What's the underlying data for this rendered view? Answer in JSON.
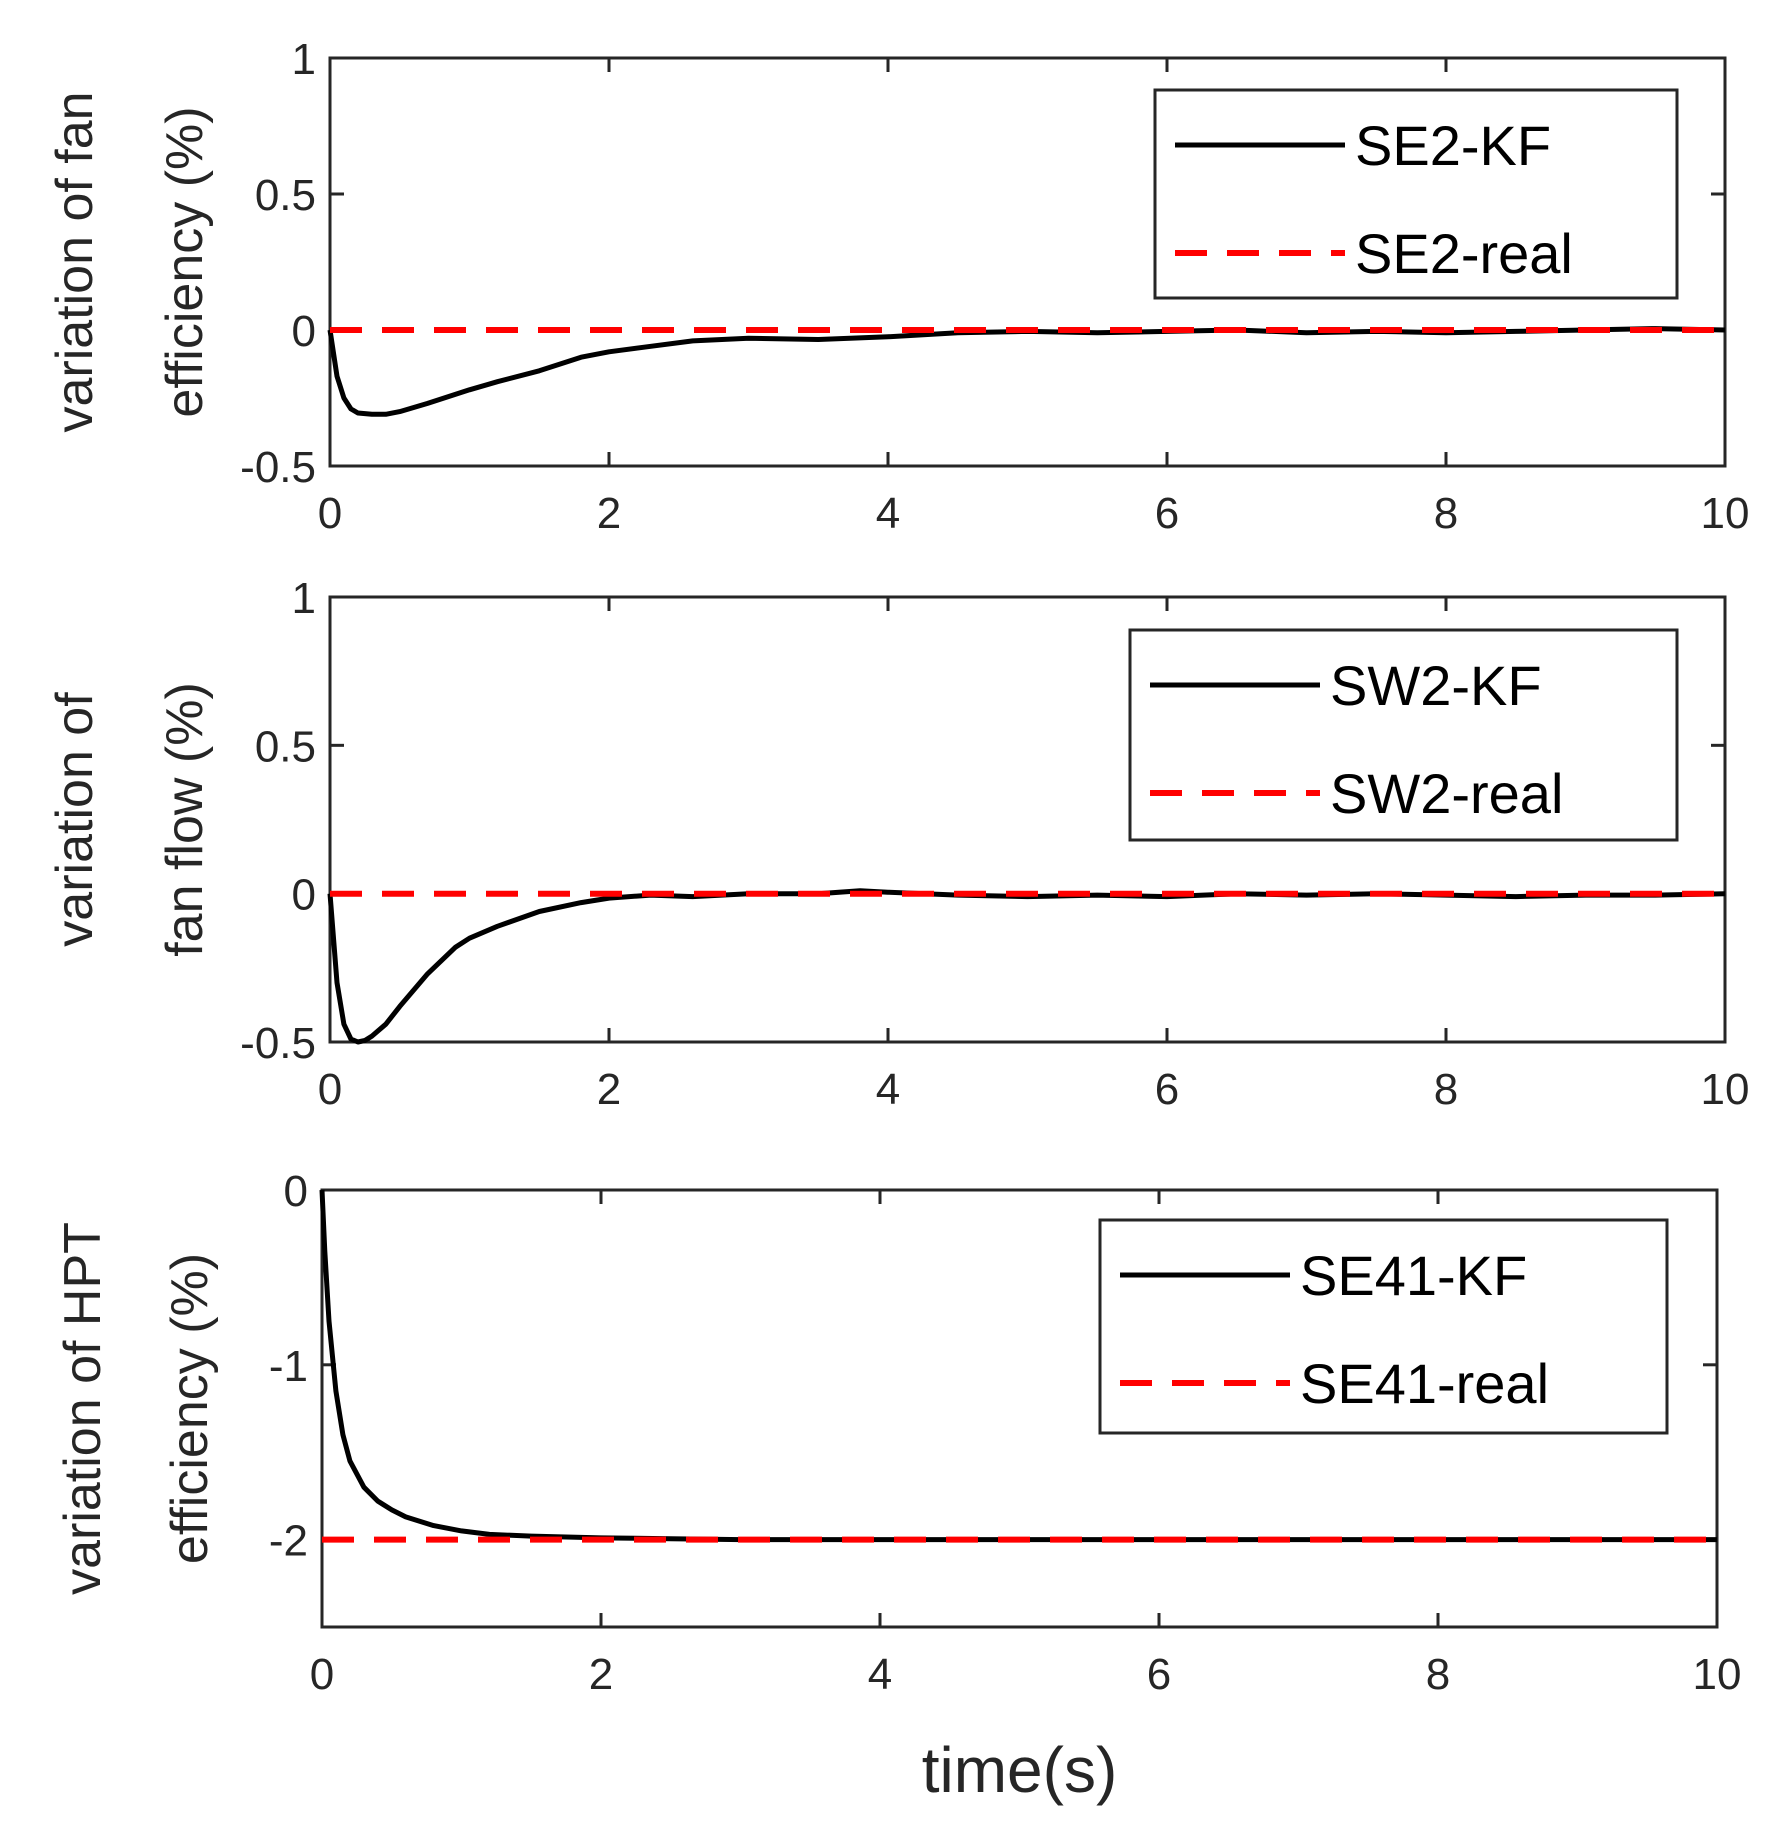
{
  "chart_data": [
    {
      "type": "line",
      "ylabel_lines": [
        "variation of fan",
        "efficiency (%)"
      ],
      "xlabel": "",
      "xlim": [
        0,
        10
      ],
      "ylim": [
        -0.5,
        1
      ],
      "xticks": [
        0,
        2,
        4,
        6,
        8,
        10
      ],
      "yticks": [
        -0.5,
        0,
        0.5,
        1
      ],
      "ytick_labels": [
        "-0.5",
        "0",
        "0.5",
        "1"
      ],
      "legend_position": "top-right",
      "series": [
        {
          "name": "SE2-KF",
          "style": "solid",
          "color": "#000000",
          "x": [
            0,
            0.05,
            0.1,
            0.15,
            0.2,
            0.3,
            0.4,
            0.5,
            0.7,
            1.0,
            1.2,
            1.5,
            1.8,
            2.0,
            2.3,
            2.6,
            3.0,
            3.5,
            4.0,
            4.5,
            5.0,
            5.5,
            6.0,
            6.5,
            7.0,
            7.5,
            8.0,
            8.5,
            9.0,
            9.5,
            10
          ],
          "y": [
            0,
            -0.17,
            -0.25,
            -0.29,
            -0.305,
            -0.31,
            -0.31,
            -0.3,
            -0.27,
            -0.22,
            -0.19,
            -0.15,
            -0.1,
            -0.08,
            -0.06,
            -0.04,
            -0.03,
            -0.035,
            -0.025,
            -0.01,
            -0.005,
            -0.01,
            -0.005,
            0,
            -0.01,
            -0.005,
            -0.01,
            -0.005,
            0,
            0.005,
            0
          ]
        },
        {
          "name": "SE2-real",
          "style": "dashed",
          "color": "#ff0000",
          "x": [
            0,
            10
          ],
          "y": [
            0,
            0
          ]
        }
      ]
    },
    {
      "type": "line",
      "ylabel_lines": [
        "variation of",
        "fan flow (%)"
      ],
      "xlabel": "",
      "xlim": [
        0,
        10
      ],
      "ylim": [
        -0.5,
        1
      ],
      "xticks": [
        0,
        2,
        4,
        6,
        8,
        10
      ],
      "yticks": [
        -0.5,
        0,
        0.5,
        1
      ],
      "ytick_labels": [
        "-0.5",
        "0",
        "0.5",
        "1"
      ],
      "legend_position": "top-right",
      "series": [
        {
          "name": "SW2-KF",
          "style": "solid",
          "color": "#000000",
          "x": [
            0,
            0.05,
            0.1,
            0.15,
            0.2,
            0.25,
            0.3,
            0.4,
            0.5,
            0.7,
            0.9,
            1.0,
            1.2,
            1.5,
            1.8,
            2.0,
            2.3,
            2.6,
            3.0,
            3.5,
            3.8,
            4.0,
            4.5,
            5.0,
            5.5,
            6.0,
            6.5,
            7.0,
            7.5,
            8.0,
            8.5,
            9.0,
            9.5,
            10
          ],
          "y": [
            0,
            -0.3,
            -0.44,
            -0.49,
            -0.5,
            -0.495,
            -0.48,
            -0.44,
            -0.38,
            -0.27,
            -0.18,
            -0.15,
            -0.11,
            -0.06,
            -0.03,
            -0.015,
            -0.005,
            -0.01,
            0,
            0,
            0.01,
            0.005,
            -0.005,
            -0.01,
            -0.005,
            -0.01,
            0,
            -0.005,
            0,
            -0.005,
            -0.01,
            -0.005,
            -0.005,
            0
          ]
        },
        {
          "name": "SW2-real",
          "style": "dashed",
          "color": "#ff0000",
          "x": [
            0,
            10
          ],
          "y": [
            0,
            0
          ]
        }
      ]
    },
    {
      "type": "line",
      "ylabel_lines": [
        "variation of HPT",
        "efficiency (%)"
      ],
      "xlabel": "time(s)",
      "xlim": [
        0,
        10
      ],
      "ylim": [
        -2.5,
        0
      ],
      "xticks": [
        0,
        2,
        4,
        6,
        8,
        10
      ],
      "yticks": [
        -2,
        -1,
        0
      ],
      "ytick_labels": [
        "-2",
        "-1",
        "0"
      ],
      "legend_position": "top-right",
      "series": [
        {
          "name": "SE41-KF",
          "style": "solid",
          "color": "#000000",
          "x": [
            0,
            0.02,
            0.05,
            0.1,
            0.15,
            0.2,
            0.3,
            0.4,
            0.5,
            0.6,
            0.8,
            1.0,
            1.2,
            1.5,
            2.0,
            2.5,
            3.0,
            4.0,
            5.0,
            6.0,
            7.0,
            8.0,
            9.0,
            10
          ],
          "y": [
            0,
            -0.35,
            -0.75,
            -1.15,
            -1.4,
            -1.55,
            -1.7,
            -1.78,
            -1.83,
            -1.87,
            -1.92,
            -1.95,
            -1.97,
            -1.98,
            -1.99,
            -1.995,
            -2.0,
            -2.0,
            -2.0,
            -2.0,
            -2.0,
            -2.0,
            -2.0,
            -2.0
          ]
        },
        {
          "name": "SE41-real",
          "style": "dashed",
          "color": "#ff0000",
          "x": [
            0,
            10
          ],
          "y": [
            -2,
            -2
          ]
        }
      ]
    }
  ]
}
